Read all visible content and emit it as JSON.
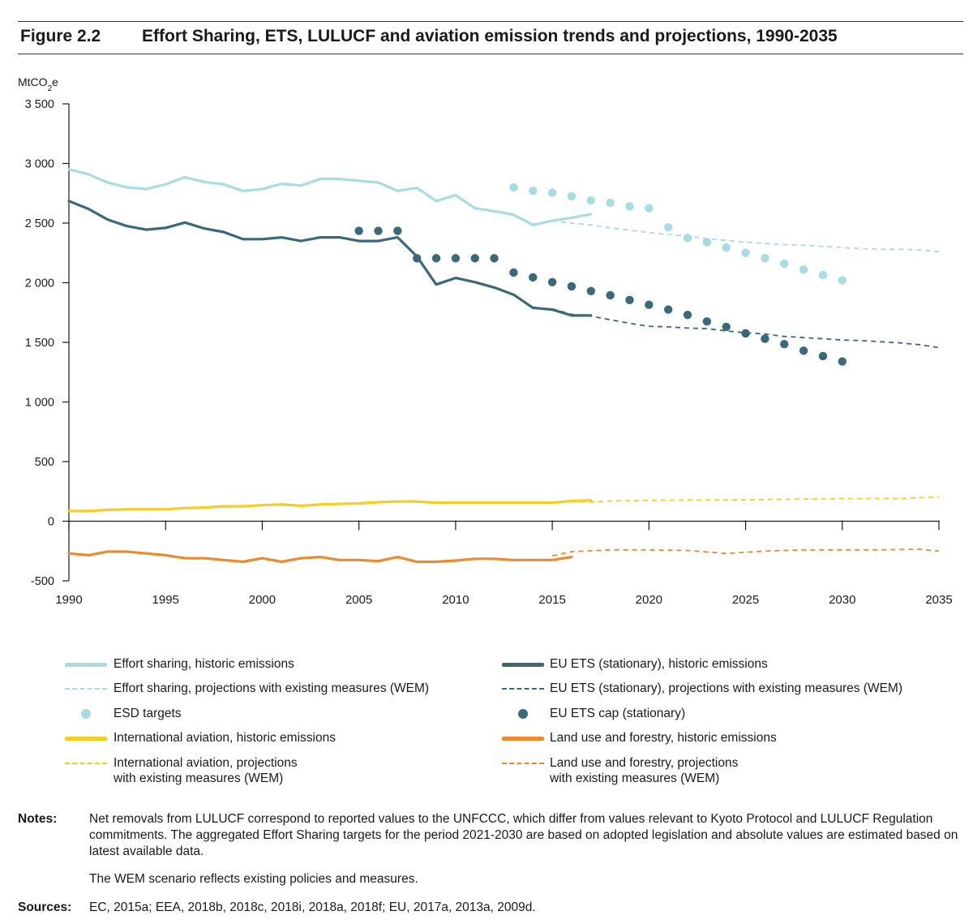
{
  "figure": {
    "number": "Figure 2.2",
    "title": "Effort Sharing, ETS, LULUCF and aviation emission trends and projections, 1990-2035"
  },
  "chart_data": {
    "type": "line",
    "ylabel": "MtCO₂e",
    "ylim": [
      -500,
      3500
    ],
    "xlim": [
      1990,
      2035
    ],
    "y_ticks": [
      {
        "v": 3500,
        "label": "3 500"
      },
      {
        "v": 3000,
        "label": "3 000"
      },
      {
        "v": 2500,
        "label": "2 500"
      },
      {
        "v": 2000,
        "label": "2 000"
      },
      {
        "v": 1500,
        "label": "1 500"
      },
      {
        "v": 1000,
        "label": "1 000"
      },
      {
        "v": 500,
        "label": "500"
      },
      {
        "v": 0,
        "label": "0"
      },
      {
        "v": -500,
        "label": "-500"
      }
    ],
    "x_ticks": [
      1990,
      1995,
      2000,
      2005,
      2010,
      2015,
      2020,
      2025,
      2030,
      2035
    ],
    "grid": false,
    "legend_position": "bottom",
    "series": [
      {
        "name": "Effort sharing, historic emissions",
        "style": "solid",
        "color": "#a8dce3",
        "x": [
          1990,
          1991,
          1992,
          1993,
          1994,
          1995,
          1996,
          1997,
          1998,
          1999,
          2000,
          2001,
          2002,
          2003,
          2004,
          2005,
          2006,
          2007,
          2008,
          2009,
          2010,
          2011,
          2012,
          2013,
          2014,
          2015,
          2016,
          2017
        ],
        "y": [
          2950,
          2910,
          2840,
          2800,
          2785,
          2825,
          2885,
          2845,
          2825,
          2770,
          2785,
          2830,
          2815,
          2870,
          2870,
          2855,
          2840,
          2770,
          2795,
          2685,
          2735,
          2625,
          2600,
          2570,
          2485,
          2520,
          2545,
          2575
        ]
      },
      {
        "name": "Effort sharing, projections with existing measures (WEM)",
        "style": "dashed",
        "color": "#a8dce3",
        "x": [
          2015,
          2016,
          2017,
          2018,
          2019,
          2020,
          2021,
          2022,
          2023,
          2024,
          2025,
          2026,
          2027,
          2028,
          2029,
          2030,
          2031,
          2032,
          2033,
          2034,
          2035
        ],
        "y": [
          2520,
          2500,
          2485,
          2460,
          2440,
          2420,
          2405,
          2390,
          2370,
          2355,
          2340,
          2330,
          2320,
          2315,
          2305,
          2295,
          2285,
          2280,
          2280,
          2275,
          2260
        ]
      },
      {
        "name": "ESD targets",
        "style": "dots",
        "color": "#a8dce3",
        "x": [
          2013,
          2014,
          2015,
          2016,
          2017,
          2018,
          2019,
          2020,
          2021,
          2022,
          2023,
          2024,
          2025,
          2026,
          2027,
          2028,
          2029,
          2030
        ],
        "y": [
          2800,
          2770,
          2755,
          2725,
          2690,
          2670,
          2640,
          2625,
          2465,
          2375,
          2340,
          2295,
          2250,
          2205,
          2160,
          2110,
          2065,
          2020
        ]
      },
      {
        "name": "EU ETS (stationary), historic emissions",
        "style": "solid",
        "color": "#3a6a7a",
        "x": [
          1990,
          1991,
          1992,
          1993,
          1994,
          1995,
          1996,
          1997,
          1998,
          1999,
          2000,
          2001,
          2002,
          2003,
          2004,
          2005,
          2006,
          2007,
          2008,
          2009,
          2010,
          2011,
          2012,
          2013,
          2014,
          2015,
          2016,
          2017
        ],
        "y": [
          2685,
          2620,
          2530,
          2475,
          2445,
          2460,
          2505,
          2455,
          2425,
          2365,
          2365,
          2380,
          2350,
          2380,
          2380,
          2350,
          2350,
          2380,
          2220,
          1985,
          2040,
          2005,
          1960,
          1900,
          1790,
          1775,
          1725,
          1725
        ]
      },
      {
        "name": "EU ETS (stationary), projections with existing measures (WEM)",
        "style": "dashed",
        "color": "#3a6a7a",
        "x": [
          2015,
          2016,
          2017,
          2018,
          2019,
          2020,
          2021,
          2022,
          2023,
          2024,
          2025,
          2026,
          2027,
          2028,
          2029,
          2030,
          2031,
          2032,
          2033,
          2034,
          2035
        ],
        "y": [
          1780,
          1735,
          1720,
          1690,
          1660,
          1635,
          1630,
          1620,
          1615,
          1595,
          1580,
          1570,
          1550,
          1540,
          1530,
          1520,
          1515,
          1505,
          1495,
          1480,
          1455
        ]
      },
      {
        "name": "EU ETS cap (stationary)",
        "style": "dots",
        "color": "#3a6a7a",
        "x": [
          2005,
          2006,
          2007,
          2008,
          2009,
          2010,
          2011,
          2012,
          2013,
          2014,
          2015,
          2016,
          2017,
          2018,
          2019,
          2020,
          2021,
          2022,
          2023,
          2024,
          2025,
          2026,
          2027,
          2028,
          2029,
          2030
        ],
        "y": [
          2435,
          2435,
          2435,
          2205,
          2205,
          2205,
          2205,
          2205,
          2085,
          2045,
          2005,
          1970,
          1930,
          1895,
          1855,
          1815,
          1775,
          1730,
          1675,
          1630,
          1575,
          1530,
          1485,
          1430,
          1385,
          1340
        ]
      },
      {
        "name": "International aviation, historic emissions",
        "style": "solid",
        "color": "#f5cf1f",
        "x": [
          1990,
          1991,
          1992,
          1993,
          1994,
          1995,
          1996,
          1997,
          1998,
          1999,
          2000,
          2001,
          2002,
          2003,
          2004,
          2005,
          2006,
          2007,
          2008,
          2009,
          2010,
          2011,
          2012,
          2013,
          2014,
          2015,
          2016,
          2017
        ],
        "y": [
          85,
          85,
          95,
          100,
          100,
          100,
          110,
          115,
          125,
          125,
          135,
          140,
          130,
          140,
          145,
          150,
          160,
          165,
          165,
          155,
          155,
          155,
          155,
          155,
          155,
          155,
          170,
          175
        ]
      },
      {
        "name": "International aviation, projections with existing measures (WEM)",
        "style": "dashed",
        "color": "#f5cf1f",
        "x": [
          2016,
          2017,
          2018,
          2020,
          2025,
          2030,
          2033,
          2035
        ],
        "y": [
          165,
          160,
          170,
          175,
          180,
          190,
          190,
          205
        ]
      },
      {
        "name": "Land use and forestry, historic emissions",
        "style": "solid",
        "color": "#ed8a2b",
        "x": [
          1990,
          1991,
          1992,
          1993,
          1994,
          1995,
          1996,
          1997,
          1998,
          1999,
          2000,
          2001,
          2002,
          2003,
          2004,
          2005,
          2006,
          2007,
          2008,
          2009,
          2010,
          2011,
          2012,
          2013,
          2014,
          2015,
          2016
        ],
        "y": [
          -270,
          -285,
          -255,
          -255,
          -270,
          -285,
          -310,
          -310,
          -325,
          -340,
          -310,
          -340,
          -310,
          -300,
          -325,
          -325,
          -335,
          -300,
          -340,
          -340,
          -330,
          -315,
          -315,
          -325,
          -325,
          -325,
          -300
        ]
      },
      {
        "name": "Land use and forestry, projections with existing measures (WEM)",
        "style": "dashed",
        "color": "#ed8a2b",
        "x": [
          2015,
          2016,
          2018,
          2020,
          2022,
          2024,
          2026,
          2028,
          2030,
          2032,
          2034,
          2035
        ],
        "y": [
          -290,
          -255,
          -240,
          -240,
          -245,
          -270,
          -250,
          -240,
          -240,
          -240,
          -235,
          -250
        ]
      }
    ]
  },
  "legend": [
    {
      "label": "Effort sharing, historic emissions",
      "sym": "solid",
      "color": "#a8dce3"
    },
    {
      "label": "EU ETS (stationary), historic emissions",
      "sym": "solid",
      "color": "#3a6a7a"
    },
    {
      "label": "Effort sharing, projections with existing measures (WEM)",
      "sym": "dashed",
      "color": "#a8dce3"
    },
    {
      "label": "EU ETS (stationary), projections with existing measures (WEM)",
      "sym": "dashed",
      "color": "#3a6a7a"
    },
    {
      "label": "ESD targets",
      "sym": "dot",
      "color": "#a8dce3"
    },
    {
      "label": "EU ETS cap (stationary)",
      "sym": "dot",
      "color": "#3a6a7a"
    },
    {
      "label": "International aviation, historic emissions",
      "sym": "solid",
      "color": "#f5cf1f"
    },
    {
      "label": "Land use and forestry, historic emissions",
      "sym": "solid",
      "color": "#ed8a2b"
    },
    {
      "label": "International aviation, projections\nwith existing measures (WEM)",
      "sym": "dashed",
      "color": "#f5cf1f"
    },
    {
      "label": "Land use and forestry, projections\nwith existing measures (WEM)",
      "sym": "dashed",
      "color": "#ed8a2b"
    }
  ],
  "notes": {
    "label": "Notes:",
    "text1": "Net removals from LULUCF correspond to reported values to the UNFCCC, which differ from values relevant to Kyoto Protocol and LULUCF Regulation commitments. The aggregated Effort Sharing targets for the period 2021-2030 are based on adopted legislation and absolute values are estimated based on latest available data.",
    "text2": "The WEM scenario reflects existing policies and measures."
  },
  "sources": {
    "label": "Sources:",
    "text": "EC, 2015a; EEA, 2018b, 2018c, 2018i, 2018a, 2018f; EU, 2017a, 2013a, 2009d."
  }
}
